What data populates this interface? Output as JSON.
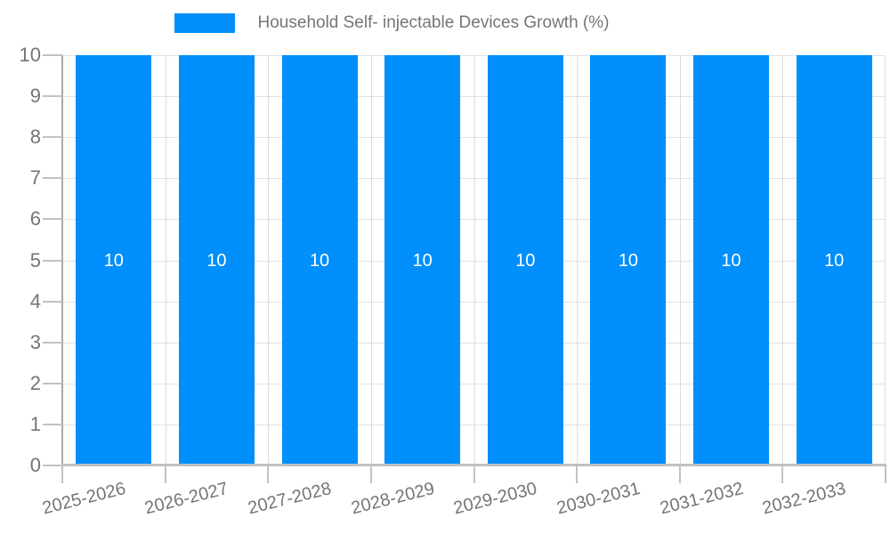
{
  "legend": {
    "label": "Household Self- injectable Devices Growth (%)"
  },
  "chart_data": {
    "type": "bar",
    "title": "Household Self- injectable Devices Growth (%)",
    "categories": [
      "2025-2026",
      "2026-2027",
      "2027-2028",
      "2028-2029",
      "2029-2030",
      "2030-2031",
      "2031-2032",
      "2032-2033"
    ],
    "values": [
      10,
      10,
      10,
      10,
      10,
      10,
      10,
      10
    ],
    "bar_value_labels": [
      "10",
      "10",
      "10",
      "10",
      "10",
      "10",
      "10",
      "10"
    ],
    "xlabel": "",
    "ylabel": "",
    "ylim": [
      0,
      10
    ],
    "yticks": [
      0,
      1,
      2,
      3,
      4,
      5,
      6,
      7,
      8,
      9,
      10
    ],
    "grid": true,
    "legend_position": "top-center",
    "x_label_rotation_deg": -14,
    "colors": {
      "bar": "#008FFB",
      "bar_label": "#FFFFFF",
      "grid_h": "#E2E2E2",
      "grid_v": "#DCDCDC",
      "axis_y": "#A8A8A8",
      "axis_x": "#C0C0C0",
      "tick": "#C2C2C2",
      "label": "#757575"
    }
  }
}
